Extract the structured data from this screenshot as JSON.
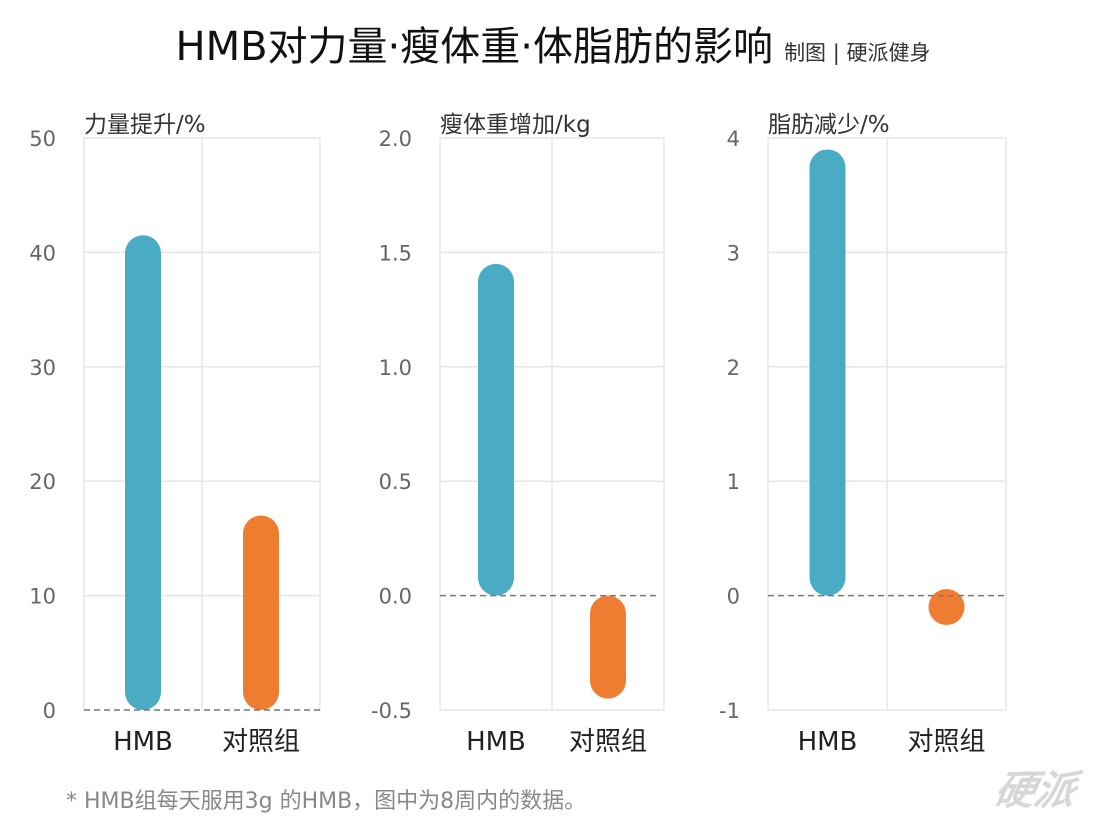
{
  "title": "HMB对力量·瘦体重·体脂肪的影响",
  "credit": "制图 | 硬派健身",
  "footnote": "* HMB组每天服用3g 的HMB，图中为8周内的数据。",
  "watermark": "硬派",
  "colors": {
    "hmb": "#4aabc5",
    "control": "#ee7d31",
    "grid": "#e6e6e6",
    "axis_text": "#666666",
    "zero_line": "#777777"
  },
  "chart_data": [
    {
      "type": "bar",
      "ylabel": "力量提升/%",
      "categories": [
        "HMB",
        "对照组"
      ],
      "values": [
        41.5,
        17
      ],
      "ylim": [
        0,
        50
      ],
      "ticks": [
        0,
        10,
        20,
        30,
        40,
        50
      ],
      "tick_labels": [
        "0",
        "10",
        "20",
        "30",
        "40",
        "50"
      ],
      "grid": true
    },
    {
      "type": "bar",
      "ylabel": "瘦体重增加/kg",
      "categories": [
        "HMB",
        "对照组"
      ],
      "values": [
        1.45,
        -0.45
      ],
      "ylim": [
        -0.5,
        2.0
      ],
      "ticks": [
        -0.5,
        0,
        0.5,
        1.0,
        1.5,
        2.0
      ],
      "tick_labels": [
        "-0.5",
        "0.0",
        "0.5",
        "1.0",
        "1.5",
        "2.0"
      ],
      "grid": true
    },
    {
      "type": "bar",
      "ylabel": "脂肪减少/%",
      "categories": [
        "HMB",
        "对照组"
      ],
      "values": [
        3.9,
        -0.2
      ],
      "ylim": [
        -1,
        4
      ],
      "ticks": [
        -1,
        0,
        1,
        2,
        3,
        4
      ],
      "tick_labels": [
        "-1",
        "0",
        "1",
        "2",
        "3",
        "4"
      ],
      "grid": true
    }
  ]
}
